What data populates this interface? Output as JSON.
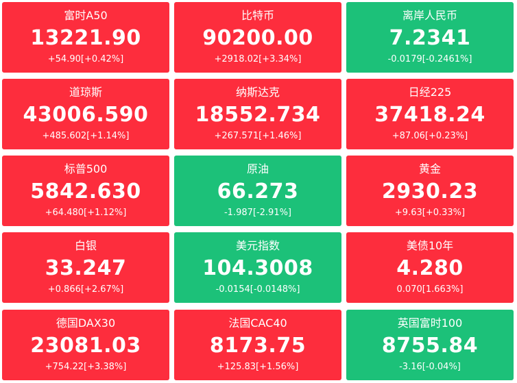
{
  "colors": {
    "up": "#fd2d3d",
    "down": "#1cc179",
    "text": "#ffffff"
  },
  "tiles": [
    {
      "name": "富时A50",
      "price": "13221.90",
      "change": "+54.90[+0.42%]",
      "trend": "up"
    },
    {
      "name": "比特币",
      "price": "90200.00",
      "change": "+2918.02[+3.34%]",
      "trend": "up"
    },
    {
      "name": "离岸人民币",
      "price": "7.2341",
      "change": "-0.0179[-0.2461%]",
      "trend": "down"
    },
    {
      "name": "道琼斯",
      "price": "43006.590",
      "change": "+485.602[+1.14%]",
      "trend": "up"
    },
    {
      "name": "纳斯达克",
      "price": "18552.734",
      "change": "+267.571[+1.46%]",
      "trend": "up"
    },
    {
      "name": "日经225",
      "price": "37418.24",
      "change": "+87.06[+0.23%]",
      "trend": "up"
    },
    {
      "name": "标普500",
      "price": "5842.630",
      "change": "+64.480[+1.12%]",
      "trend": "up"
    },
    {
      "name": "原油",
      "price": "66.273",
      "change": "-1.987[-2.91%]",
      "trend": "down"
    },
    {
      "name": "黄金",
      "price": "2930.23",
      "change": "+9.63[+0.33%]",
      "trend": "up"
    },
    {
      "name": "白银",
      "price": "33.247",
      "change": "+0.866[+2.67%]",
      "trend": "up"
    },
    {
      "name": "美元指数",
      "price": "104.3008",
      "change": "-0.0154[-0.0148%]",
      "trend": "down"
    },
    {
      "name": "美债10年",
      "price": "4.280",
      "change": "0.070[1.663%]",
      "trend": "up"
    },
    {
      "name": "德国DAX30",
      "price": "23081.03",
      "change": "+754.22[+3.38%]",
      "trend": "up"
    },
    {
      "name": "法国CAC40",
      "price": "8173.75",
      "change": "+125.83[+1.56%]",
      "trend": "up"
    },
    {
      "name": "英国富时100",
      "price": "8755.84",
      "change": "-3.16[-0.04%]",
      "trend": "down"
    }
  ]
}
